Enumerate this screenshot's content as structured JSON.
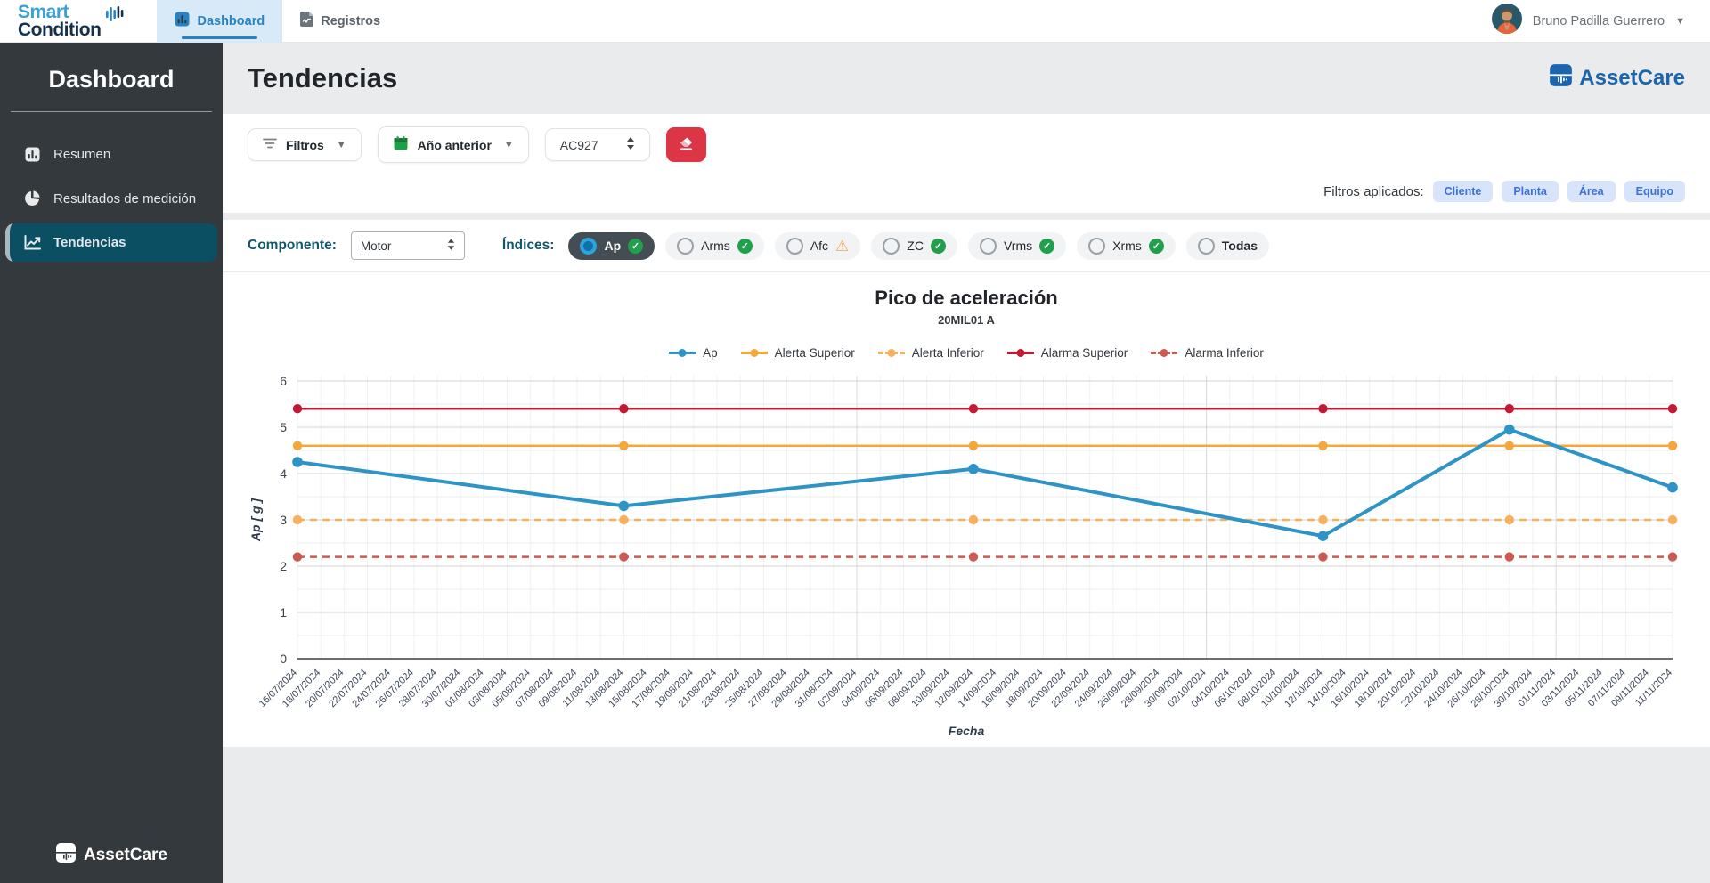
{
  "topbar": {
    "brand": {
      "line1": "Smart",
      "line2": "Condition"
    },
    "nav": [
      {
        "label": "Dashboard",
        "icon": "bar-chart-icon",
        "active": true
      },
      {
        "label": "Registros",
        "icon": "file-icon",
        "active": false
      }
    ],
    "user": {
      "name": "Bruno Padilla Guerrero"
    }
  },
  "sidebar": {
    "title": "Dashboard",
    "items": [
      {
        "label": "Resumen",
        "icon": "bar-chart-icon",
        "active": false
      },
      {
        "label": "Resultados de medición",
        "icon": "pie-chart-icon",
        "active": false
      },
      {
        "label": "Tendencias",
        "icon": "line-chart-icon",
        "active": true
      }
    ],
    "footer_brand": "AssetCare"
  },
  "page": {
    "title": "Tendencias",
    "brand": "AssetCare"
  },
  "filters": {
    "filtros_label": "Filtros",
    "period_label": "Año anterior",
    "equipment_value": "AC927",
    "applied_label": "Filtros aplicados:",
    "applied": [
      "Cliente",
      "Planta",
      "Área",
      "Equipo"
    ]
  },
  "controls": {
    "component_label": "Componente:",
    "component_value": "Motor",
    "indices_label": "Índices:",
    "indices": [
      {
        "label": "Ap",
        "selected": true,
        "status": "ok"
      },
      {
        "label": "Arms",
        "selected": false,
        "status": "ok"
      },
      {
        "label": "Afc",
        "selected": false,
        "status": "warning"
      },
      {
        "label": "ZC",
        "selected": false,
        "status": "ok"
      },
      {
        "label": "Vrms",
        "selected": false,
        "status": "ok"
      },
      {
        "label": "Xrms",
        "selected": false,
        "status": "ok"
      },
      {
        "label": "Todas",
        "selected": false,
        "status": "none"
      }
    ]
  },
  "colors": {
    "accent_teal": "#11576e",
    "sidebar_active": "#0b4f63",
    "nav_active_blue": "#2783c4",
    "badge_blue_bg": "#d7e4f9",
    "badge_blue_text": "#3c70d7",
    "danger_red": "#dc3545",
    "ok_green": "#21a04b",
    "warning_amber": "#f0ad4e",
    "brand_blue": "#1c64ae"
  },
  "chart_data": {
    "type": "line",
    "title": "Pico de aceleración",
    "subtitle": "20MIL01 A",
    "xlabel": "Fecha",
    "ylabel": "Ap [ g ]",
    "ylim": [
      0,
      6
    ],
    "y_tick_step": 1,
    "grid": true,
    "legend_position": "top",
    "x_ticks": [
      "16/07/2024",
      "18/07/2024",
      "20/07/2024",
      "22/07/2024",
      "24/07/2024",
      "26/07/2024",
      "28/07/2024",
      "30/07/2024",
      "01/08/2024",
      "03/08/2024",
      "05/08/2024",
      "07/08/2024",
      "09/08/2024",
      "11/08/2024",
      "13/08/2024",
      "15/08/2024",
      "17/08/2024",
      "19/08/2024",
      "21/08/2024",
      "23/08/2024",
      "25/08/2024",
      "27/08/2024",
      "29/08/2024",
      "31/08/2024",
      "02/09/2024",
      "04/09/2024",
      "06/09/2024",
      "08/09/2024",
      "10/09/2024",
      "12/09/2024",
      "14/09/2024",
      "16/09/2024",
      "18/09/2024",
      "20/09/2024",
      "22/09/2024",
      "24/09/2024",
      "26/09/2024",
      "28/09/2024",
      "30/09/2024",
      "02/10/2024",
      "04/10/2024",
      "06/10/2024",
      "08/10/2024",
      "10/10/2024",
      "12/10/2024",
      "14/10/2024",
      "16/10/2024",
      "18/10/2024",
      "20/10/2024",
      "22/10/2024",
      "24/10/2024",
      "26/10/2024",
      "28/10/2024",
      "30/10/2024",
      "01/11/2024",
      "03/11/2024",
      "05/11/2024",
      "07/11/2024",
      "09/11/2024",
      "11/11/2024"
    ],
    "month_start_tick_indices": [
      8,
      24,
      39,
      54
    ],
    "point_dates": [
      "16/07/2024",
      "13/08/2024",
      "12/09/2024",
      "12/10/2024",
      "28/10/2024",
      "11/11/2024"
    ],
    "point_tick_indices": [
      0,
      14,
      29,
      44,
      52,
      59
    ],
    "series": [
      {
        "name": "Ap",
        "color": "#2e94c5",
        "style": "solid",
        "width": 4,
        "values": [
          4.25,
          3.3,
          4.1,
          2.65,
          4.95,
          3.7
        ]
      },
      {
        "name": "Alerta Superior",
        "color": "#f5a73b",
        "style": "solid",
        "width": 2.5,
        "constant": 4.6
      },
      {
        "name": "Alerta Inferior",
        "color": "#f7b05e",
        "style": "dashed",
        "width": 2.5,
        "constant": 3.0
      },
      {
        "name": "Alarma Superior",
        "color": "#c41934",
        "style": "solid",
        "width": 2.5,
        "constant": 5.4
      },
      {
        "name": "Alarma Inferior",
        "color": "#cd5a52",
        "style": "dashed",
        "width": 2.5,
        "constant": 2.2
      }
    ],
    "legend": [
      "Ap",
      "Alerta Superior",
      "Alerta Inferior",
      "Alarma Superior",
      "Alarma Inferior"
    ]
  }
}
